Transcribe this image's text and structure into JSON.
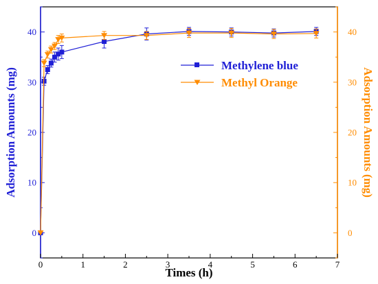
{
  "chart_data": {
    "type": "line",
    "xlabel": "Times (h)",
    "ylabel_left": "Adsorption Amounts (mg)",
    "ylabel_right": "Adsorption Amounts (mg)",
    "xlim": [
      0,
      7
    ],
    "ylim_left": [
      -5,
      45
    ],
    "ylim_right": [
      -5,
      45
    ],
    "x_ticks": [
      0,
      1,
      2,
      3,
      4,
      5,
      6,
      7
    ],
    "y_ticks_left": [
      0,
      10,
      20,
      30,
      40
    ],
    "y_ticks_right": [
      0,
      10,
      20,
      30,
      40
    ],
    "grid": false,
    "legend_position": "upper-right",
    "series": [
      {
        "name": "Methylene blue",
        "axis": "left",
        "color": "#1f1fd6",
        "marker": "square",
        "x": [
          0,
          0.083,
          0.167,
          0.25,
          0.333,
          0.417,
          0.5,
          1.5,
          2.5,
          3.5,
          4.5,
          5.5,
          6.5
        ],
        "y": [
          0,
          30.2,
          32.5,
          33.8,
          35.0,
          35.6,
          36.0,
          38.1,
          39.6,
          40.1,
          40.0,
          39.8,
          40.1
        ],
        "err": [
          0,
          0.8,
          0.8,
          0.8,
          1.0,
          1.2,
          1.3,
          1.3,
          1.2,
          0.8,
          0.8,
          0.8,
          0.8
        ]
      },
      {
        "name": "Methyl Orange",
        "axis": "right",
        "color": "#ff8c00",
        "marker": "triangle-down",
        "x": [
          0,
          0.083,
          0.167,
          0.25,
          0.333,
          0.417,
          0.5,
          1.5,
          2.5,
          3.5,
          4.5,
          5.5,
          6.5
        ],
        "y": [
          0,
          33.8,
          35.5,
          36.5,
          37.2,
          38.5,
          38.8,
          39.3,
          39.3,
          39.8,
          39.8,
          39.6,
          39.7
        ],
        "err": [
          0,
          0.7,
          0.7,
          0.7,
          0.7,
          0.8,
          0.8,
          0.8,
          0.8,
          0.9,
          0.9,
          0.9,
          0.9
        ]
      }
    ]
  }
}
